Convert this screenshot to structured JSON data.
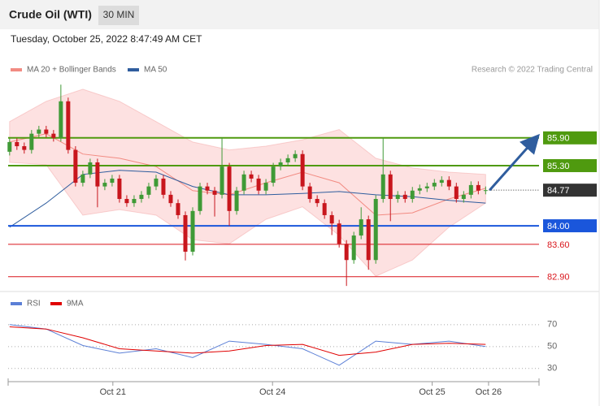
{
  "header": {
    "title": "Crude Oil (WTI)",
    "timeframe": "30 MIN",
    "timestamp": "Tuesday, October 25, 2022 8:47:49 AM CET"
  },
  "chart_data": [
    {
      "type": "candlestick",
      "credit": "Research © 2022 Trading Central",
      "xlim": [
        -0.2,
        72.4
      ],
      "ylim": [
        82.65,
        87.3
      ],
      "up_color": "#3f9a36",
      "down_color": "#c8161d",
      "open": [
        85.6,
        85.81,
        85.72,
        85.64,
        85.99,
        86.08,
        85.99,
        85.9,
        86.69,
        85.64,
        84.93,
        85.11,
        85.37,
        84.85,
        84.93,
        85.02,
        84.58,
        84.49,
        84.58,
        84.67,
        84.85,
        85.02,
        84.67,
        84.49,
        84.23,
        83.44,
        84.32,
        84.85,
        84.76,
        84.67,
        85.28,
        84.32,
        84.76,
        85.11,
        85.02,
        84.76,
        84.93,
        85.28,
        85.37,
        85.46,
        85.55,
        84.85,
        84.58,
        84.49,
        84.23,
        84.05,
        83.61,
        83.26,
        83.79,
        84.14,
        83.26,
        84.58,
        85.11,
        84.58,
        84.67,
        84.58,
        84.76,
        84.81,
        84.85,
        84.93,
        84.99,
        84.85,
        84.58,
        84.67,
        84.88,
        84.76
      ],
      "high": [
        85.89,
        85.89,
        85.8,
        86.07,
        86.16,
        86.16,
        86.07,
        87.05,
        86.77,
        85.72,
        85.19,
        85.45,
        85.45,
        85.01,
        85.1,
        85.1,
        84.66,
        84.66,
        84.75,
        84.93,
        85.1,
        85.1,
        84.75,
        84.57,
        84.31,
        84.4,
        84.93,
        84.93,
        84.84,
        85.9,
        85.36,
        84.84,
        85.19,
        85.19,
        85.1,
        85.01,
        85.36,
        85.45,
        85.54,
        85.63,
        85.63,
        84.93,
        84.66,
        84.57,
        84.31,
        84.13,
        83.69,
        83.87,
        84.4,
        84.22,
        84.66,
        85.9,
        85.19,
        84.75,
        84.75,
        84.84,
        84.89,
        84.93,
        85.01,
        85.07,
        85.07,
        84.93,
        84.75,
        84.96,
        84.96,
        84.85
      ],
      "low": [
        85.52,
        85.64,
        85.56,
        85.56,
        85.91,
        85.91,
        85.82,
        85.82,
        85.56,
        84.85,
        84.85,
        85.03,
        84.4,
        84.77,
        84.85,
        84.5,
        84.41,
        84.41,
        84.5,
        84.59,
        84.77,
        84.59,
        84.41,
        84.15,
        83.25,
        83.36,
        84.24,
        84.68,
        84.2,
        84.59,
        84.0,
        84.24,
        84.68,
        84.94,
        84.68,
        84.68,
        84.85,
        85.2,
        85.29,
        85.38,
        84.77,
        84.5,
        84.41,
        84.15,
        83.8,
        83.53,
        82.7,
        83.18,
        83.71,
        83.05,
        83.18,
        84.5,
        84.1,
        84.5,
        84.5,
        84.5,
        84.68,
        84.73,
        84.77,
        84.85,
        84.77,
        84.5,
        84.5,
        84.59,
        84.68,
        84.68
      ],
      "close": [
        85.81,
        85.72,
        85.64,
        85.99,
        86.08,
        85.99,
        85.9,
        86.69,
        85.64,
        84.93,
        85.11,
        85.37,
        84.85,
        84.93,
        85.02,
        84.58,
        84.49,
        84.58,
        84.67,
        84.85,
        85.02,
        84.67,
        84.49,
        84.23,
        83.44,
        84.32,
        84.85,
        84.76,
        84.67,
        85.28,
        84.32,
        84.76,
        85.11,
        85.02,
        84.76,
        84.93,
        85.28,
        85.37,
        85.46,
        85.55,
        84.85,
        84.58,
        84.49,
        84.23,
        84.05,
        83.61,
        83.26,
        83.79,
        84.14,
        83.26,
        84.58,
        85.11,
        84.58,
        84.67,
        84.58,
        84.76,
        84.81,
        84.85,
        84.93,
        84.99,
        84.85,
        84.58,
        84.67,
        84.88,
        84.76,
        84.77
      ],
      "series": [
        {
          "name": "MA 20 + Bollinger Bands",
          "color": "#f28b82",
          "x": [
            0,
            5,
            10,
            15,
            20,
            25,
            30,
            35,
            40,
            45,
            50,
            55,
            60,
            65
          ],
          "values": [
            85.81,
            85.99,
            85.55,
            85.46,
            85.28,
            84.76,
            84.67,
            84.93,
            85.16,
            84.93,
            84.23,
            84.28,
            84.58,
            84.81
          ],
          "upper": [
            86.25,
            86.69,
            86.95,
            86.69,
            86.25,
            85.81,
            85.64,
            85.72,
            85.86,
            86.08,
            85.46,
            85.25,
            85.16,
            85.11
          ],
          "lower": [
            85.37,
            85.32,
            84.23,
            84.35,
            84.23,
            83.7,
            83.61,
            84.14,
            84.41,
            83.79,
            82.91,
            83.26,
            83.97,
            84.49
          ]
        },
        {
          "name": "MA 50",
          "color": "#2f5d9e",
          "x": [
            0,
            5,
            10,
            15,
            20,
            25,
            30,
            35,
            40,
            45,
            50,
            55,
            60,
            65
          ],
          "values": [
            83.97,
            84.49,
            85.11,
            85.2,
            85.16,
            84.85,
            84.67,
            84.67,
            84.7,
            84.74,
            84.67,
            84.63,
            84.55,
            84.49
          ]
        }
      ],
      "levels": [
        {
          "value": 85.9,
          "label": "85.90",
          "color": "#4f9a0f",
          "box": true,
          "dashed": false
        },
        {
          "value": 85.3,
          "label": "85.30",
          "color": "#4f9a0f",
          "box": true,
          "dashed": false
        },
        {
          "value": 84.77,
          "label": "84.77",
          "color": "#333333",
          "box": true,
          "dashed": true
        },
        {
          "value": 84,
          "label": "84.00",
          "color": "#1a56db",
          "box": true,
          "dashed": false
        },
        {
          "value": 83.6,
          "label": "83.60",
          "color": "#d9151b",
          "box": false,
          "dashed": false
        },
        {
          "value": 82.9,
          "label": "82.90",
          "color": "#d9151b",
          "box": false,
          "dashed": false
        }
      ]
    },
    {
      "type": "line",
      "xlim": [
        -0.2,
        72.4
      ],
      "ylim": [
        18,
        81
      ],
      "yticks": [
        70,
        50,
        30
      ],
      "xticks": [
        {
          "value": 14.1,
          "label": "Oct 21"
        },
        {
          "value": 35.9,
          "label": "Oct 24"
        },
        {
          "value": 57.7,
          "label": "Oct 25"
        },
        {
          "value": 65.4,
          "label": "Oct 26"
        }
      ],
      "series": [
        {
          "name": "RSI",
          "color": "#5b7fd6",
          "x": [
            0,
            5,
            10,
            15,
            20,
            25,
            30,
            35,
            40,
            45,
            50,
            55,
            60,
            65
          ],
          "values": [
            70,
            66,
            51,
            44,
            48,
            40,
            55,
            52,
            48,
            33,
            55,
            52,
            55,
            50
          ]
        },
        {
          "name": "9MA",
          "color": "#e00000",
          "x": [
            0,
            5,
            10,
            15,
            20,
            25,
            30,
            35,
            40,
            45,
            50,
            55,
            60,
            65
          ],
          "values": [
            68,
            66,
            58,
            48,
            46,
            44,
            46,
            51,
            52,
            42,
            45,
            52,
            53,
            52
          ]
        }
      ]
    }
  ]
}
